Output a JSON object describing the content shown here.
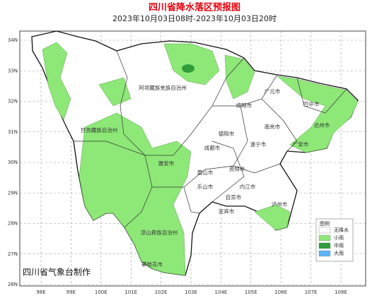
{
  "title": "四川省降水落区预报图",
  "subtitle": "2023年10月03日08时-2023年10月03日20时",
  "footer": "四川省气象台制作",
  "axes": {
    "lat_ticks": [
      {
        "value": 26,
        "label": "26N"
      },
      {
        "value": 27,
        "label": "27N"
      },
      {
        "value": 28,
        "label": "28N"
      },
      {
        "value": 29,
        "label": "29N"
      },
      {
        "value": 30,
        "label": "30N"
      },
      {
        "value": 31,
        "label": "31N"
      },
      {
        "value": 32,
        "label": "32N"
      },
      {
        "value": 33,
        "label": "33N"
      },
      {
        "value": 34,
        "label": "34N"
      }
    ],
    "lon_ticks": [
      {
        "value": 98,
        "label": "98E"
      },
      {
        "value": 99,
        "label": "99E"
      },
      {
        "value": 100,
        "label": "100E"
      },
      {
        "value": 101,
        "label": "101E"
      },
      {
        "value": 102,
        "label": "102E"
      },
      {
        "value": 103,
        "label": "103E"
      },
      {
        "value": 104,
        "label": "104E"
      },
      {
        "value": 105,
        "label": "105E"
      },
      {
        "value": 106,
        "label": "106E"
      },
      {
        "value": 107,
        "label": "107E"
      },
      {
        "value": 108,
        "label": "108E"
      }
    ]
  },
  "legend": {
    "title": "图例",
    "items": [
      {
        "label": "无降水",
        "color": "#ffffff"
      },
      {
        "label": "小雨",
        "color": "#8ee878"
      },
      {
        "label": "中雨",
        "color": "#2f9e3a"
      },
      {
        "label": "大雨",
        "color": "#5ab4f5"
      }
    ]
  },
  "places": [
    "阿坝藏族羌族自治州",
    "甘孜藏族自治州",
    "雅安市",
    "凉山彝族自治州",
    "攀枝花市",
    "广元市",
    "巴中市",
    "达州市",
    "绵阳市",
    "南充市",
    "德阳市",
    "广安市",
    "成都市",
    "遂宁市",
    "眉山市",
    "资阳市",
    "乐山市",
    "内江市",
    "自贡市",
    "宜宾市",
    "泸州市"
  ]
}
